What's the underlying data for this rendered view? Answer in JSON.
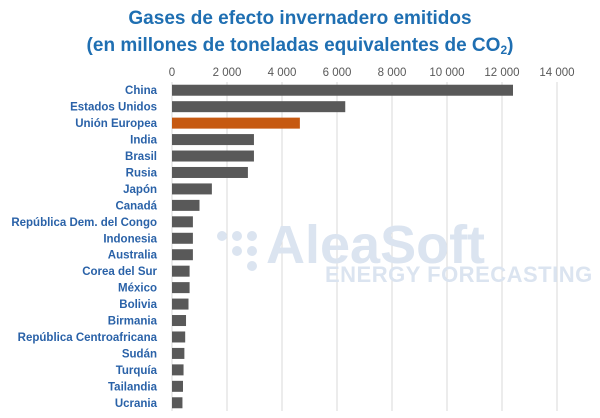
{
  "title_line1": "Gases de efecto invernadero emitidos",
  "title_line2_prefix": "(en millones de toneladas equivalentes de CO",
  "title_line2_sub": "2",
  "title_line2_suffix": ")",
  "watermark": {
    "name": "AleaSoft",
    "tagline": "ENERGY FORECASTING"
  },
  "colors": {
    "bar": "#595959",
    "highlight": "#c65911",
    "grid": "#d9d9d9",
    "title": "#1f6fb2",
    "category_text": "#2a62a8"
  },
  "chart_data": {
    "type": "bar",
    "orientation": "horizontal",
    "title": "Gases de efecto invernadero emitidos (en millones de toneladas equivalentes de CO2)",
    "categories": [
      "China",
      "Estados Unidos",
      "Unión Europea",
      "India",
      "Brasil",
      "Rusia",
      "Japón",
      "Canadá",
      "República Dem. del Congo",
      "Indonesia",
      "Australia",
      "Corea del Sur",
      "México",
      "Bolivia",
      "Birmania",
      "República Centroafricana",
      "Sudán",
      "Turquía",
      "Tailandia",
      "Ucrania"
    ],
    "values": [
      12400,
      6300,
      4650,
      2980,
      2980,
      2760,
      1450,
      1000,
      760,
      760,
      760,
      640,
      640,
      600,
      510,
      480,
      450,
      420,
      400,
      380
    ],
    "highlight_category": "Unión Europea",
    "xlim": [
      0,
      14000
    ],
    "xticks": [
      0,
      2000,
      4000,
      6000,
      8000,
      10000,
      12000,
      14000
    ],
    "xtick_labels": [
      "0",
      "2 000",
      "4 000",
      "6 000",
      "8 000",
      "10 000",
      "12 000",
      "14 000"
    ],
    "x_axis_position": "top",
    "grid": true
  }
}
